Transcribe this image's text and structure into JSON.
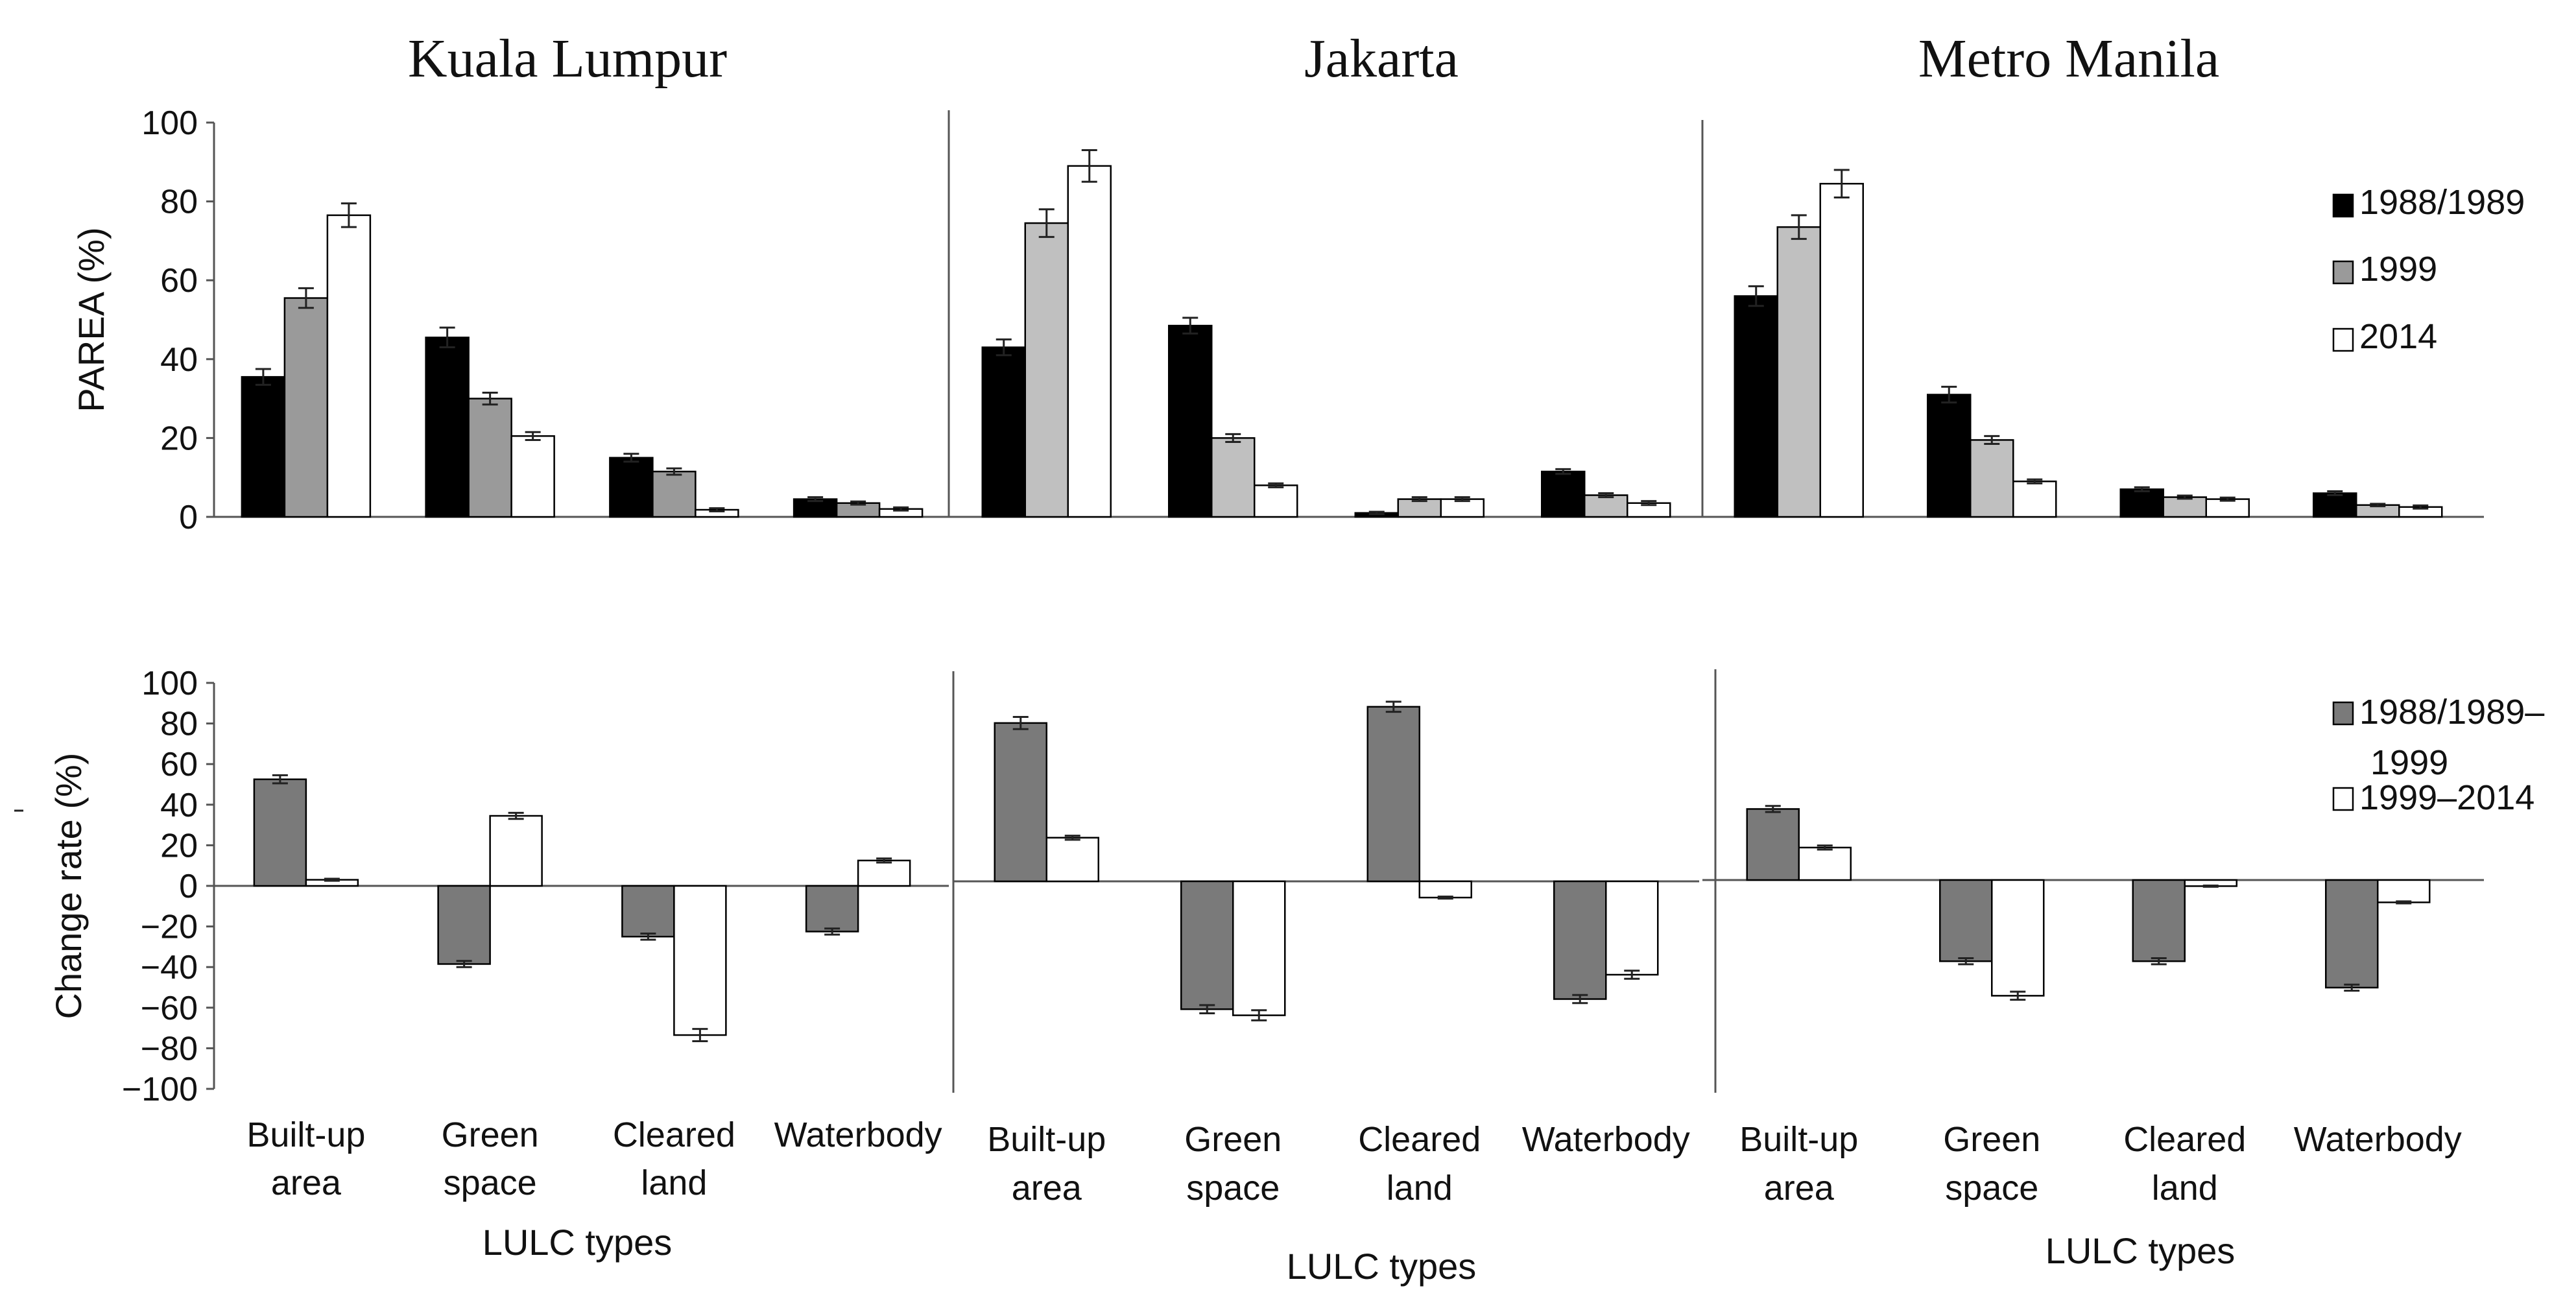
{
  "chart_data": [
    {
      "type": "bar",
      "panel": "top",
      "ylabel": "PAREA (%)",
      "ylim": [
        0,
        100
      ],
      "yticks": [
        0,
        20,
        40,
        60,
        80,
        100
      ],
      "categories": [
        "Built-up area",
        "Green space",
        "Cleared land",
        "Waterbody"
      ],
      "legend": [
        "1988/1989",
        "1999",
        "2014"
      ],
      "legend_position": "right",
      "series_colors": [
        "#000000",
        "#9a9a9a",
        "#ffffff"
      ],
      "series_colors_jakarta_manila": [
        "#000000",
        "#c0c0c0",
        "#ffffff"
      ],
      "cities": [
        {
          "name": "Kuala Lumpur",
          "series": [
            {
              "name": "1988/1989",
              "values": [
                35.5,
                45.5,
                15,
                4.5
              ],
              "errors": [
                2,
                2.5,
                1,
                0.5
              ]
            },
            {
              "name": "1999",
              "values": [
                55.5,
                30,
                11.5,
                3.5
              ],
              "errors": [
                2.5,
                1.5,
                0.8,
                0.4
              ]
            },
            {
              "name": "2014",
              "values": [
                76.5,
                20.5,
                1.8,
                2
              ],
              "errors": [
                3,
                1,
                0.4,
                0.4
              ]
            }
          ]
        },
        {
          "name": "Jakarta",
          "series": [
            {
              "name": "1988/1989",
              "values": [
                43,
                48.5,
                1,
                11.5
              ],
              "errors": [
                2,
                2,
                0.3,
                0.6
              ]
            },
            {
              "name": "1999",
              "values": [
                74.5,
                20,
                4.5,
                5.5
              ],
              "errors": [
                3.5,
                1,
                0.5,
                0.5
              ]
            },
            {
              "name": "2014",
              "values": [
                89,
                8,
                4.5,
                3.5
              ],
              "errors": [
                4,
                0.5,
                0.5,
                0.5
              ]
            }
          ]
        },
        {
          "name": "Metro Manila",
          "series": [
            {
              "name": "1988/1989",
              "values": [
                56,
                31,
                7,
                6
              ],
              "errors": [
                2.5,
                2,
                0.5,
                0.5
              ]
            },
            {
              "name": "1999",
              "values": [
                73.5,
                19.5,
                5,
                3
              ],
              "errors": [
                3,
                1,
                0.4,
                0.3
              ]
            },
            {
              "name": "2014",
              "values": [
                84.5,
                9,
                4.5,
                2.5
              ],
              "errors": [
                3.5,
                0.5,
                0.4,
                0.4
              ]
            }
          ]
        }
      ]
    },
    {
      "type": "bar",
      "panel": "bottom",
      "ylabel": "Change rate (%)",
      "ylim": [
        -100,
        100
      ],
      "yticks": [
        -100,
        -80,
        -60,
        -40,
        -20,
        0,
        20,
        40,
        60,
        80,
        100
      ],
      "ytick_labels": [
        "−100",
        "−80",
        "−60",
        "−40",
        "−20",
        "0",
        "20",
        "40",
        "60",
        "80",
        "100"
      ],
      "categories": [
        "Built-up area",
        "Green space",
        "Cleared land",
        "Waterbody"
      ],
      "xlabel": "LULC types",
      "legend": [
        "1988/1989–1999",
        "1999–2014"
      ],
      "legend_position": "right",
      "series_colors": [
        "#7a7a7a",
        "#ffffff"
      ],
      "cities": [
        {
          "name": "Kuala Lumpur",
          "series": [
            {
              "name": "1988/1989–1999",
              "values": [
                52.5,
                -38.5,
                -25,
                -22.5
              ],
              "errors": [
                2,
                1.5,
                1.5,
                1.5
              ]
            },
            {
              "name": "1999–2014",
              "values": [
                3,
                34.5,
                -73.5,
                12.5
              ],
              "errors": [
                0.5,
                1.5,
                3,
                1
              ]
            }
          ]
        },
        {
          "name": "Jakarta",
          "series": [
            {
              "name": "1988/1989–1999",
              "values": [
                78,
                -63,
                86,
                -58
              ],
              "errors": [
                3,
                2,
                2.5,
                2
              ]
            },
            {
              "name": "1999–2014",
              "values": [
                21.5,
                -66,
                -8,
                -46
              ],
              "errors": [
                1,
                2.5,
                0.5,
                2
              ]
            }
          ]
        },
        {
          "name": "Metro Manila",
          "series": [
            {
              "name": "1988/1989–1999",
              "values": [
                35,
                -40,
                -40,
                -53
              ],
              "errors": [
                1.5,
                1.5,
                1.5,
                1.5
              ]
            },
            {
              "name": "1999–2014",
              "values": [
                16,
                -57,
                -3,
                -11
              ],
              "errors": [
                1,
                2,
                0.3,
                0.5
              ]
            }
          ]
        }
      ]
    }
  ],
  "labels": {
    "lulc_types": "LULC types",
    "legend_top": [
      "1988/1989",
      "1999",
      "2014"
    ],
    "legend_bottom_1a": "1988/1989–",
    "legend_bottom_1b": "1999",
    "legend_bottom_2": "1999–2014"
  }
}
